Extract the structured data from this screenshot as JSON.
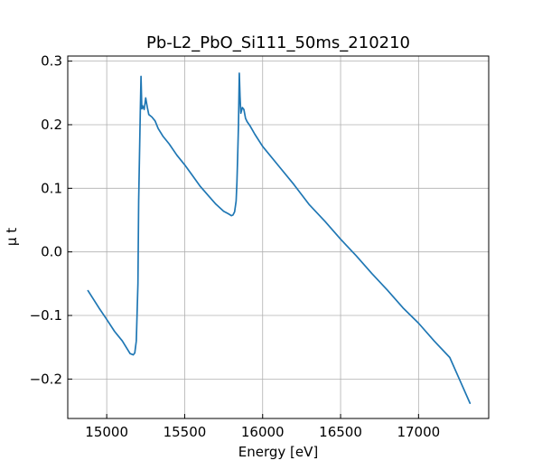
{
  "chart_data": {
    "type": "line",
    "title": "Pb-L2_PbO_Si111_50ms_210210",
    "xlabel": "Energy [eV]",
    "ylabel": "μ t",
    "xlim": [
      14750,
      17450
    ],
    "ylim": [
      -0.262,
      0.308
    ],
    "xticks": [
      15000,
      15500,
      16000,
      16500,
      17000
    ],
    "yticks": [
      -0.2,
      -0.1,
      0.0,
      0.1,
      0.2,
      0.3
    ],
    "xtick_labels": [
      "15000",
      "15500",
      "16000",
      "16500",
      "17000"
    ],
    "ytick_labels": [
      "−0.2",
      "−0.1",
      "0.0",
      "0.1",
      "0.2",
      "0.3"
    ],
    "grid": true,
    "line_color": "#1f77b4",
    "series": [
      {
        "x": [
          14880,
          14950,
          15000,
          15050,
          15100,
          15150,
          15170,
          15180,
          15190,
          15200,
          15205,
          15210,
          15215,
          15220,
          15225,
          15230,
          15240,
          15250,
          15260,
          15270,
          15290,
          15310,
          15330,
          15360,
          15400,
          15450,
          15500,
          15550,
          15600,
          15650,
          15700,
          15750,
          15780,
          15800,
          15810,
          15820,
          15830,
          15835,
          15840,
          15845,
          15850,
          15855,
          15860,
          15870,
          15880,
          15890,
          15900,
          15920,
          15950,
          16000,
          16100,
          16200,
          16300,
          16400,
          16500,
          16600,
          16700,
          16800,
          16900,
          17000,
          17100,
          17200,
          17330
        ],
        "y": [
          -0.061,
          -0.088,
          -0.106,
          -0.125,
          -0.14,
          -0.16,
          -0.162,
          -0.159,
          -0.14,
          -0.05,
          0.08,
          0.15,
          0.22,
          0.276,
          0.225,
          0.23,
          0.224,
          0.242,
          0.228,
          0.216,
          0.212,
          0.206,
          0.194,
          0.182,
          0.17,
          0.152,
          0.137,
          0.12,
          0.103,
          0.089,
          0.075,
          0.064,
          0.06,
          0.057,
          0.058,
          0.063,
          0.08,
          0.11,
          0.15,
          0.2,
          0.281,
          0.245,
          0.218,
          0.227,
          0.224,
          0.21,
          0.205,
          0.198,
          0.185,
          0.166,
          0.136,
          0.106,
          0.074,
          0.048,
          0.02,
          -0.006,
          -0.034,
          -0.06,
          -0.088,
          -0.112,
          -0.14,
          -0.166,
          -0.238
        ]
      }
    ]
  }
}
